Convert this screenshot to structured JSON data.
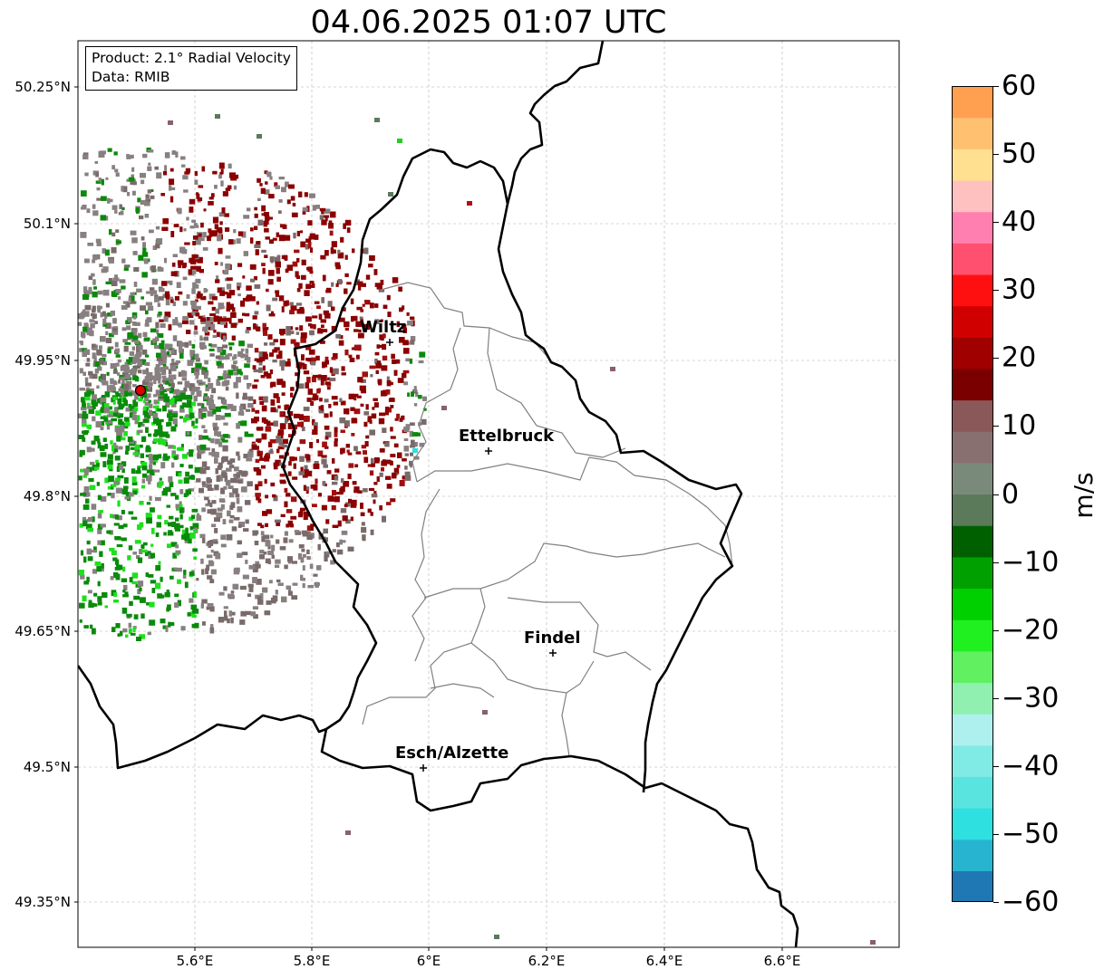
{
  "title": "04.06.2025 01:07 UTC",
  "info": {
    "product": "Product: 2.1° Radial Velocity",
    "data": "Data: RMIB"
  },
  "axes": {
    "lat_ticks": [
      "50.25°N",
      "50.1°N",
      "49.95°N",
      "49.8°N",
      "49.65°N",
      "49.5°N",
      "49.35°N"
    ],
    "lon_ticks": [
      "5.6°E",
      "5.8°E",
      "6°E",
      "6.2°E",
      "6.4°E",
      "6.6°E"
    ]
  },
  "cities": [
    {
      "name": "Wiltz"
    },
    {
      "name": "Ettelbruck"
    },
    {
      "name": "Findel"
    },
    {
      "name": "Esch/Alzette"
    }
  ],
  "colorbar": {
    "unit": "m/s",
    "ticks": [
      "60",
      "50",
      "40",
      "30",
      "20",
      "10",
      "0",
      "−10",
      "−20",
      "−30",
      "−40",
      "−50",
      "−60"
    ],
    "range": [
      -60,
      60
    ],
    "colors": [
      "#1f78b4",
      "#27b4d0",
      "#2ee0e0",
      "#5ae4e0",
      "#80eae4",
      "#aef0ee",
      "#90f0b0",
      "#60f060",
      "#20f020",
      "#00d000",
      "#00a000",
      "#006000",
      "#5a7a5a",
      "#7a8a7a",
      "#887070",
      "#8a5858",
      "#7a0000",
      "#a00000",
      "#d00000",
      "#ff1010",
      "#ff5070",
      "#ff80b0",
      "#ffc0c0",
      "#ffe090",
      "#ffc070",
      "#ffa050"
    ],
    "radar_colors": {
      "positive_dark": "#8b0000",
      "positive_mid": "#a01010",
      "near_zero": "#7a6a6a",
      "neutral_gray": "#888080",
      "negative_green": "#0a8a0a",
      "negative_bright": "#1ee01e",
      "radar_site": "#e00000"
    }
  }
}
